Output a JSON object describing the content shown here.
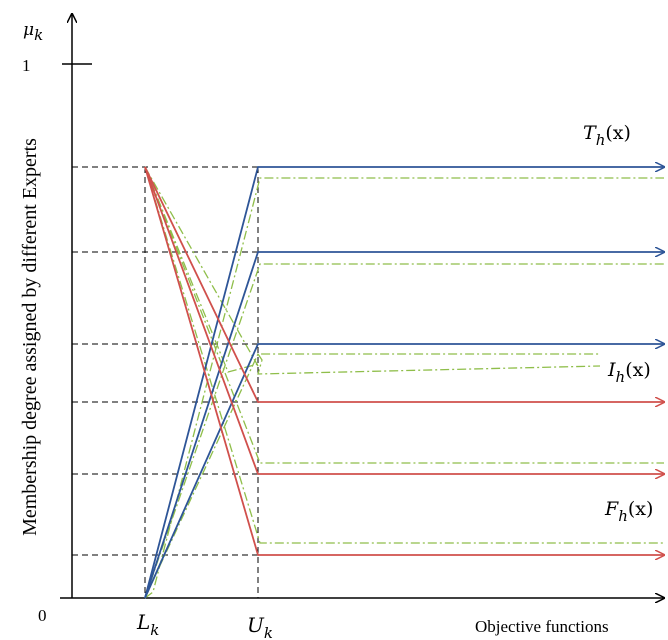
{
  "y_axis_symbol": {
    "base": "μ",
    "sub": "k"
  },
  "y_axis_label": "Membership degree assigned by different Experts",
  "y_tick_one": "1",
  "origin_label": "0",
  "x_axis_label": "Objective functions",
  "x_ticks": {
    "lower": {
      "base": "L",
      "sub": "k"
    },
    "upper": {
      "base": "U",
      "sub": "k"
    }
  },
  "curve_labels": {
    "truth": {
      "base": "T",
      "sub": "h",
      "arg": "(x)"
    },
    "indeterminacy": {
      "base": "I",
      "sub": "h",
      "arg": "(x)"
    },
    "falsity": {
      "base": "F",
      "sub": "h",
      "arg": "(x)"
    }
  },
  "colors": {
    "axis": "#000000",
    "truth": "#2e5597",
    "indeterminacy": "#8fbe4a",
    "falsity": "#d0504c",
    "guides": "#000000"
  }
}
